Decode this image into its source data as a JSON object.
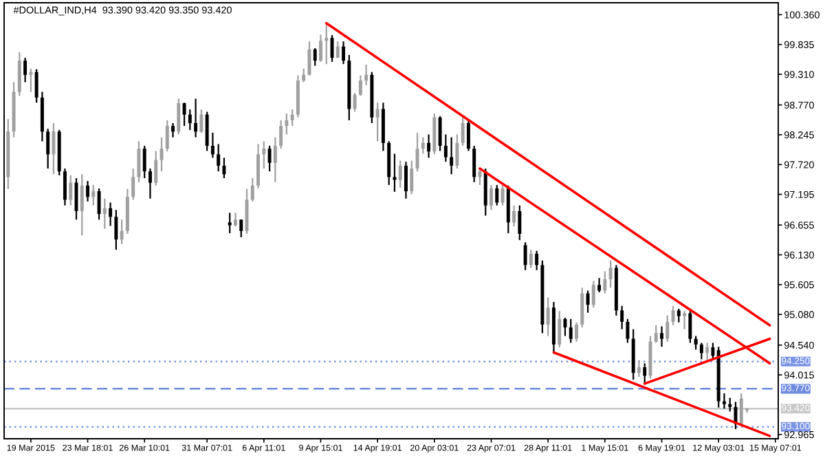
{
  "chart_data": {
    "type": "candlestick",
    "title": "#DOLLAR_IND,H4  93.390 93.420 93.350 93.420",
    "categories": [
      null,
      null,
      null,
      null,
      "19 Mar 2015",
      null,
      null,
      null,
      null,
      null,
      null,
      null,
      null,
      null,
      "23 Mar 18:01",
      null,
      null,
      null,
      null,
      null,
      null,
      null,
      null,
      null,
      "26 Mar 10:01",
      null,
      null,
      null,
      null,
      null,
      null,
      null,
      null,
      null,
      null,
      "31 Mar 07:01",
      null,
      null,
      null,
      null,
      null,
      null,
      null,
      null,
      null,
      "6 Apr 11:01",
      null,
      null,
      null,
      null,
      null,
      null,
      null,
      null,
      null,
      "9 Apr 15:01",
      null,
      null,
      null,
      null,
      null,
      null,
      null,
      null,
      null,
      "14 Apr 19:01",
      null,
      null,
      null,
      null,
      null,
      null,
      null,
      null,
      null,
      "20 Apr 03:01",
      null,
      null,
      null,
      null,
      null,
      null,
      null,
      null,
      null,
      "23 Apr 07:01",
      null,
      null,
      null,
      null,
      null,
      null,
      null,
      null,
      null,
      "28 Apr 11:01",
      null,
      null,
      null,
      null,
      null,
      null,
      null,
      null,
      null,
      "1 May 15:01",
      null,
      null,
      null,
      null,
      null,
      null,
      null,
      null,
      null,
      "6 May 19:01",
      null,
      null,
      null,
      null,
      null,
      null,
      null,
      null,
      null,
      "12 May 03:01",
      null,
      null,
      null,
      null,
      null,
      null,
      null,
      null,
      null,
      "15 May 07:01"
    ],
    "ohlc": [
      [
        97.5,
        98.52,
        97.29,
        98.3
      ],
      [
        98.3,
        99.17,
        98.2,
        99.0
      ],
      [
        99.0,
        99.7,
        98.93,
        99.55
      ],
      [
        99.55,
        99.6,
        99.17,
        99.3
      ],
      [
        99.3,
        99.41,
        99.0,
        99.35
      ],
      [
        99.35,
        99.4,
        98.81,
        98.9
      ],
      [
        98.9,
        99.0,
        98.13,
        98.3
      ],
      [
        98.3,
        98.35,
        97.65,
        97.9
      ],
      [
        97.9,
        98.45,
        97.55,
        98.3
      ],
      [
        98.3,
        98.33,
        97.53,
        97.6
      ],
      [
        97.6,
        97.65,
        97.0,
        97.1
      ],
      [
        97.1,
        97.53,
        97.0,
        97.4
      ],
      [
        97.4,
        97.48,
        96.75,
        96.9
      ],
      [
        96.9,
        97.55,
        96.47,
        97.35
      ],
      [
        97.35,
        97.43,
        97.07,
        97.15
      ],
      [
        97.15,
        97.36,
        97.0,
        97.25
      ],
      [
        97.25,
        97.3,
        96.75,
        96.85
      ],
      [
        96.85,
        97.12,
        96.59,
        96.95
      ],
      [
        96.95,
        97.05,
        96.64,
        96.8
      ],
      [
        96.8,
        96.92,
        96.22,
        96.4
      ],
      [
        96.4,
        96.75,
        96.32,
        96.55
      ],
      [
        96.55,
        97.29,
        96.5,
        97.15
      ],
      [
        97.15,
        97.65,
        97.1,
        97.5
      ],
      [
        97.5,
        98.13,
        97.41,
        98.0
      ],
      [
        98.0,
        98.05,
        97.48,
        97.6
      ],
      [
        97.6,
        97.65,
        97.12,
        97.4
      ],
      [
        97.4,
        97.96,
        97.35,
        97.8
      ],
      [
        97.8,
        98.2,
        97.6,
        98.0
      ],
      [
        98.0,
        98.5,
        97.95,
        98.4
      ],
      [
        98.4,
        98.45,
        98.2,
        98.3
      ],
      [
        98.3,
        98.88,
        98.25,
        98.8
      ],
      [
        98.8,
        98.81,
        98.4,
        98.6
      ],
      [
        98.6,
        98.69,
        98.33,
        98.45
      ],
      [
        98.45,
        98.88,
        98.2,
        98.3
      ],
      [
        98.3,
        98.69,
        98.28,
        98.6
      ],
      [
        98.6,
        98.65,
        97.96,
        98.05
      ],
      [
        98.05,
        98.28,
        97.84,
        97.9
      ],
      [
        97.9,
        98.08,
        97.6,
        97.7
      ],
      [
        97.7,
        97.84,
        97.48,
        97.55
      ],
      [
        96.7,
        96.87,
        96.51,
        96.65
      ],
      [
        96.65,
        96.87,
        96.63,
        96.75
      ],
      [
        96.75,
        96.75,
        96.44,
        96.55
      ],
      [
        96.55,
        97.29,
        96.5,
        97.1
      ],
      [
        97.1,
        97.48,
        97.07,
        97.35
      ],
      [
        97.35,
        98.08,
        97.3,
        97.9
      ],
      [
        97.9,
        98.13,
        97.65,
        98.0
      ],
      [
        98.0,
        98.05,
        97.6,
        97.75
      ],
      [
        97.75,
        98.2,
        97.41,
        98.05
      ],
      [
        98.05,
        98.5,
        98.0,
        98.4
      ],
      [
        98.4,
        98.62,
        98.25,
        98.5
      ],
      [
        98.5,
        98.69,
        98.4,
        98.6
      ],
      [
        98.6,
        99.29,
        98.55,
        99.2
      ],
      [
        99.2,
        99.41,
        99.17,
        99.3
      ],
      [
        99.3,
        99.89,
        99.29,
        99.75
      ],
      [
        99.75,
        99.77,
        99.46,
        99.55
      ],
      [
        99.55,
        100.01,
        99.53,
        99.9
      ],
      [
        99.9,
        100.21,
        99.49,
        99.95
      ],
      [
        99.95,
        100.0,
        99.53,
        99.6
      ],
      [
        99.6,
        99.89,
        99.6,
        99.8
      ],
      [
        99.8,
        99.89,
        99.49,
        99.55
      ],
      [
        99.55,
        99.65,
        98.5,
        98.7
      ],
      [
        98.7,
        98.98,
        98.65,
        98.95
      ],
      [
        98.95,
        99.29,
        98.93,
        99.2
      ],
      [
        99.2,
        99.48,
        99.12,
        99.3
      ],
      [
        99.3,
        99.35,
        98.45,
        98.55
      ],
      [
        98.55,
        98.81,
        98.13,
        98.7
      ],
      [
        98.7,
        98.81,
        97.96,
        98.1
      ],
      [
        98.1,
        98.13,
        97.36,
        97.5
      ],
      [
        97.5,
        97.91,
        97.24,
        97.45
      ],
      [
        97.45,
        97.79,
        97.31,
        97.7
      ],
      [
        97.7,
        97.77,
        97.12,
        97.25
      ],
      [
        97.25,
        97.79,
        97.2,
        97.65
      ],
      [
        97.65,
        98.28,
        97.6,
        98.0
      ],
      [
        98.0,
        98.2,
        97.91,
        98.1
      ],
      [
        98.1,
        98.25,
        97.84,
        97.95
      ],
      [
        97.95,
        98.62,
        97.9,
        98.55
      ],
      [
        98.55,
        98.57,
        97.96,
        98.05
      ],
      [
        98.05,
        98.25,
        97.77,
        97.85
      ],
      [
        97.85,
        98.2,
        97.55,
        97.7
      ],
      [
        97.7,
        98.25,
        97.65,
        98.1
      ],
      [
        98.1,
        98.57,
        98.05,
        98.45
      ],
      [
        98.45,
        98.52,
        97.96,
        98.0
      ],
      [
        98.0,
        98.05,
        97.41,
        97.5
      ],
      [
        97.5,
        97.65,
        97.36,
        97.6
      ],
      [
        97.6,
        97.65,
        96.82,
        97.0
      ],
      [
        97.0,
        97.36,
        96.92,
        97.3
      ],
      [
        97.3,
        97.36,
        97.0,
        97.05
      ],
      [
        97.05,
        97.36,
        97.0,
        97.3
      ],
      [
        97.3,
        97.35,
        96.51,
        96.7
      ],
      [
        96.7,
        97.0,
        96.63,
        96.9
      ],
      [
        96.9,
        97.0,
        96.39,
        96.5
      ],
      [
        96.3,
        96.35,
        95.86,
        95.95
      ],
      [
        95.95,
        96.22,
        95.9,
        96.15
      ],
      [
        96.15,
        96.2,
        95.86,
        95.95
      ],
      [
        95.95,
        96.03,
        94.75,
        94.9
      ],
      [
        94.9,
        95.38,
        94.7,
        95.2
      ],
      [
        95.2,
        95.3,
        94.41,
        94.55
      ],
      [
        94.55,
        95.14,
        94.5,
        95.0
      ],
      [
        95.0,
        95.02,
        94.7,
        94.85
      ],
      [
        94.85,
        95.0,
        94.58,
        94.65
      ],
      [
        94.65,
        94.94,
        94.6,
        94.9
      ],
      [
        94.9,
        95.55,
        94.85,
        95.45
      ],
      [
        95.45,
        95.5,
        95.11,
        95.25
      ],
      [
        95.25,
        95.67,
        95.2,
        95.6
      ],
      [
        95.6,
        95.72,
        95.47,
        95.5
      ],
      [
        95.5,
        95.84,
        95.45,
        95.7
      ],
      [
        95.7,
        96.03,
        95.55,
        95.9
      ],
      [
        95.9,
        95.95,
        95.06,
        95.15
      ],
      [
        95.15,
        95.23,
        94.82,
        94.95
      ],
      [
        94.95,
        95.0,
        94.58,
        94.65
      ],
      [
        94.65,
        94.82,
        93.93,
        94.05
      ],
      [
        94.05,
        94.27,
        93.98,
        94.15
      ],
      [
        94.15,
        94.22,
        93.86,
        94.0
      ],
      [
        94.0,
        94.7,
        93.95,
        94.6
      ],
      [
        94.6,
        94.89,
        94.58,
        94.75
      ],
      [
        94.75,
        94.87,
        94.51,
        94.65
      ],
      [
        94.65,
        95.06,
        94.6,
        94.95
      ],
      [
        94.95,
        95.23,
        94.89,
        95.15
      ],
      [
        95.15,
        95.18,
        94.94,
        95.05
      ],
      [
        95.05,
        95.14,
        94.82,
        95.1
      ],
      [
        95.1,
        95.14,
        94.58,
        94.65
      ],
      [
        94.65,
        94.7,
        94.46,
        94.55
      ],
      [
        94.55,
        94.58,
        94.29,
        94.4
      ],
      [
        94.4,
        94.58,
        94.27,
        94.5
      ],
      [
        94.5,
        94.58,
        94.29,
        94.35
      ],
      [
        94.45,
        94.51,
        93.44,
        93.55
      ],
      [
        93.55,
        93.69,
        93.42,
        93.5
      ],
      [
        93.5,
        93.61,
        93.37,
        93.45
      ],
      [
        93.45,
        93.54,
        93.06,
        93.15
      ],
      [
        93.15,
        93.69,
        93.1,
        93.6
      ],
      [
        93.39,
        93.42,
        93.35,
        93.42
      ],
      null,
      null,
      null,
      null,
      null
    ],
    "colors": [
      "#a0a0a0",
      "#a0a0a0",
      "#a0a0a0",
      "#000000",
      "#a0a0a0",
      "#000000",
      "#000000",
      "#000000",
      "#a0a0a0",
      "#000000",
      "#000000",
      "#a0a0a0",
      "#000000",
      "#a0a0a0",
      "#000000",
      "#a0a0a0",
      "#000000",
      "#a0a0a0",
      "#000000",
      "#000000",
      "#a0a0a0",
      "#a0a0a0",
      "#a0a0a0",
      "#a0a0a0",
      "#000000",
      "#000000",
      "#a0a0a0",
      "#a0a0a0",
      "#a0a0a0",
      "#000000",
      "#a0a0a0",
      "#000000",
      "#000000",
      "#000000",
      "#a0a0a0",
      "#000000",
      "#000000",
      "#000000",
      "#000000",
      "#000000",
      "#a0a0a0",
      "#000000",
      "#a0a0a0",
      "#a0a0a0",
      "#a0a0a0",
      "#a0a0a0",
      "#000000",
      "#a0a0a0",
      "#a0a0a0",
      "#a0a0a0",
      "#a0a0a0",
      "#a0a0a0",
      "#a0a0a0",
      "#a0a0a0",
      "#000000",
      "#a0a0a0",
      "#a0a0a0",
      "#000000",
      "#a0a0a0",
      "#000000",
      "#000000",
      "#a0a0a0",
      "#a0a0a0",
      "#a0a0a0",
      "#000000",
      "#a0a0a0",
      "#000000",
      "#000000",
      "#000000",
      "#a0a0a0",
      "#000000",
      "#a0a0a0",
      "#a0a0a0",
      "#a0a0a0",
      "#000000",
      "#a0a0a0",
      "#000000",
      "#000000",
      "#000000",
      "#a0a0a0",
      "#a0a0a0",
      "#000000",
      "#000000",
      "#a0a0a0",
      "#000000",
      "#a0a0a0",
      "#000000",
      "#a0a0a0",
      "#000000",
      "#a0a0a0",
      "#000000",
      "#000000",
      "#a0a0a0",
      "#000000",
      "#000000",
      "#a0a0a0",
      "#000000",
      "#a0a0a0",
      "#000000",
      "#000000",
      "#a0a0a0",
      "#a0a0a0",
      "#000000",
      "#a0a0a0",
      "#000000",
      "#a0a0a0",
      "#a0a0a0",
      "#000000",
      "#000000",
      "#000000",
      "#000000",
      "#a0a0a0",
      "#000000",
      "#a0a0a0",
      "#a0a0a0",
      "#000000",
      "#a0a0a0",
      "#a0a0a0",
      "#000000",
      "#a0a0a0",
      "#000000",
      "#000000",
      "#000000",
      "#a0a0a0",
      "#000000",
      "#000000",
      "#000000",
      "#000000",
      "#000000",
      "#a0a0a0",
      "#a0a0a0",
      null,
      null,
      null,
      null,
      null
    ],
    "series": [
      {
        "type": "line",
        "color": "#ff0000",
        "values": [
          null,
          null,
          null,
          null,
          null,
          null,
          null,
          null,
          null,
          null,
          null,
          null,
          null,
          null,
          null,
          null,
          null,
          null,
          null,
          null,
          null,
          null,
          null,
          null,
          null,
          null,
          null,
          null,
          null,
          null,
          null,
          null,
          null,
          null,
          null,
          null,
          null,
          null,
          null,
          null,
          null,
          null,
          null,
          null,
          null,
          null,
          null,
          null,
          null,
          null,
          null,
          null,
          null,
          null,
          null,
          null,
          100.21,
          null,
          null,
          null,
          null,
          null,
          null,
          null,
          null,
          null,
          null,
          null,
          null,
          null,
          null,
          null,
          null,
          null,
          null,
          null,
          null,
          null,
          null,
          null,
          null,
          null,
          null,
          null,
          null,
          null,
          null,
          null,
          null,
          null,
          null,
          null,
          null,
          null,
          null,
          null,
          null,
          null,
          null,
          null,
          null,
          null,
          null,
          null,
          null,
          null,
          null,
          null,
          null,
          null,
          null,
          null,
          null,
          null,
          null,
          null,
          null,
          null,
          null,
          null,
          null,
          null,
          null,
          null,
          null,
          null,
          null,
          null,
          null,
          null,
          null,
          null,
          null,
          null,
          94.89,
          null
        ]
      },
      {
        "type": "line",
        "color": "#ff0000",
        "values": [
          null,
          null,
          null,
          null,
          null,
          null,
          null,
          null,
          null,
          null,
          null,
          null,
          null,
          null,
          null,
          null,
          null,
          null,
          null,
          null,
          null,
          null,
          null,
          null,
          null,
          null,
          null,
          null,
          null,
          null,
          null,
          null,
          null,
          null,
          null,
          null,
          null,
          null,
          null,
          null,
          null,
          null,
          null,
          null,
          null,
          null,
          null,
          null,
          null,
          null,
          null,
          null,
          null,
          null,
          null,
          null,
          null,
          null,
          null,
          null,
          null,
          null,
          null,
          null,
          null,
          null,
          null,
          null,
          null,
          null,
          null,
          null,
          null,
          null,
          null,
          null,
          null,
          null,
          null,
          null,
          null,
          null,
          null,
          97.65,
          null,
          null,
          null,
          null,
          null,
          null,
          null,
          null,
          null,
          null,
          null,
          null,
          null,
          null,
          null,
          null,
          null,
          null,
          null,
          null,
          null,
          null,
          null,
          null,
          null,
          null,
          null,
          null,
          null,
          null,
          null,
          null,
          null,
          null,
          null,
          null,
          null,
          null,
          null,
          null,
          null,
          null,
          null,
          null,
          null,
          null,
          null,
          null,
          null,
          null,
          94.22,
          null
        ]
      },
      {
        "type": "line",
        "color": "#ff0000",
        "values": [
          null,
          null,
          null,
          null,
          null,
          null,
          null,
          null,
          null,
          null,
          null,
          null,
          null,
          null,
          null,
          null,
          null,
          null,
          null,
          null,
          null,
          null,
          null,
          null,
          null,
          null,
          null,
          null,
          null,
          null,
          null,
          null,
          null,
          null,
          null,
          null,
          null,
          null,
          null,
          null,
          null,
          null,
          null,
          null,
          null,
          null,
          null,
          null,
          null,
          null,
          null,
          null,
          null,
          null,
          null,
          null,
          null,
          null,
          null,
          null,
          null,
          null,
          null,
          null,
          null,
          null,
          null,
          null,
          null,
          null,
          null,
          null,
          null,
          null,
          null,
          null,
          null,
          null,
          null,
          null,
          null,
          null,
          null,
          null,
          null,
          null,
          null,
          null,
          null,
          null,
          null,
          null,
          null,
          null,
          null,
          null,
          94.41,
          null,
          null,
          null,
          null,
          null,
          null,
          null,
          null,
          null,
          null,
          null,
          null,
          null,
          null,
          null,
          null,
          null,
          null,
          null,
          null,
          null,
          null,
          null,
          null,
          null,
          null,
          null,
          null,
          null,
          null,
          null,
          null,
          null,
          null,
          null,
          null,
          null,
          92.94,
          null
        ]
      },
      {
        "type": "line",
        "color": "#ff0000",
        "values": [
          null,
          null,
          null,
          null,
          null,
          null,
          null,
          null,
          null,
          null,
          null,
          null,
          null,
          null,
          null,
          null,
          null,
          null,
          null,
          null,
          null,
          null,
          null,
          null,
          null,
          null,
          null,
          null,
          null,
          null,
          null,
          null,
          null,
          null,
          null,
          null,
          null,
          null,
          null,
          null,
          null,
          null,
          null,
          null,
          null,
          null,
          null,
          null,
          null,
          null,
          null,
          null,
          null,
          null,
          null,
          null,
          null,
          null,
          null,
          null,
          null,
          null,
          null,
          null,
          null,
          null,
          null,
          null,
          null,
          null,
          null,
          null,
          null,
          null,
          null,
          null,
          null,
          null,
          null,
          null,
          null,
          null,
          null,
          null,
          null,
          null,
          null,
          null,
          null,
          null,
          null,
          null,
          null,
          null,
          null,
          null,
          null,
          null,
          null,
          null,
          null,
          null,
          null,
          null,
          null,
          null,
          null,
          null,
          null,
          null,
          null,
          null,
          93.86,
          null,
          null,
          null,
          null,
          null,
          null,
          null,
          null,
          null,
          null,
          null,
          null,
          null,
          null,
          null,
          null,
          null,
          null,
          null,
          null,
          null,
          94.65,
          null
        ]
      }
    ],
    "ref_lines": [
      {
        "axis": "y",
        "value": 94.25,
        "label": "94.250",
        "color": "#7b95e6",
        "line_style": "dotted"
      },
      {
        "axis": "y",
        "value": 93.77,
        "label": "93.770",
        "color": "#6f8be0",
        "line_style": "dashed"
      },
      {
        "axis": "y",
        "value": 93.42,
        "label": "93.420",
        "color": "#c8c8c8",
        "line_style": "solid"
      },
      {
        "axis": "y",
        "value": 93.1,
        "label": "93.100",
        "color": "#7b95e6",
        "line_style": "dotted"
      }
    ],
    "ylim": [
      92.89,
      100.57
    ],
    "yticks": [
      {
        "value": 100.36,
        "label": "100.360"
      },
      {
        "value": 99.835,
        "label": "99.835"
      },
      {
        "value": 99.31,
        "label": "99.310"
      },
      {
        "value": 98.77,
        "label": "98.770"
      },
      {
        "value": 98.245,
        "label": "98.245"
      },
      {
        "value": 97.72,
        "label": "97.720"
      },
      {
        "value": 97.195,
        "label": "97.195"
      },
      {
        "value": 96.655,
        "label": "96.655"
      },
      {
        "value": 96.13,
        "label": "96.130"
      },
      {
        "value": 95.605,
        "label": "95.605"
      },
      {
        "value": 95.08,
        "label": "95.080"
      },
      {
        "value": 94.54,
        "label": "94.540"
      },
      {
        "value": 94.015,
        "label": "94.015"
      },
      {
        "value": 92.965,
        "label": "92.965"
      }
    ],
    "grid": false,
    "legend": false
  }
}
